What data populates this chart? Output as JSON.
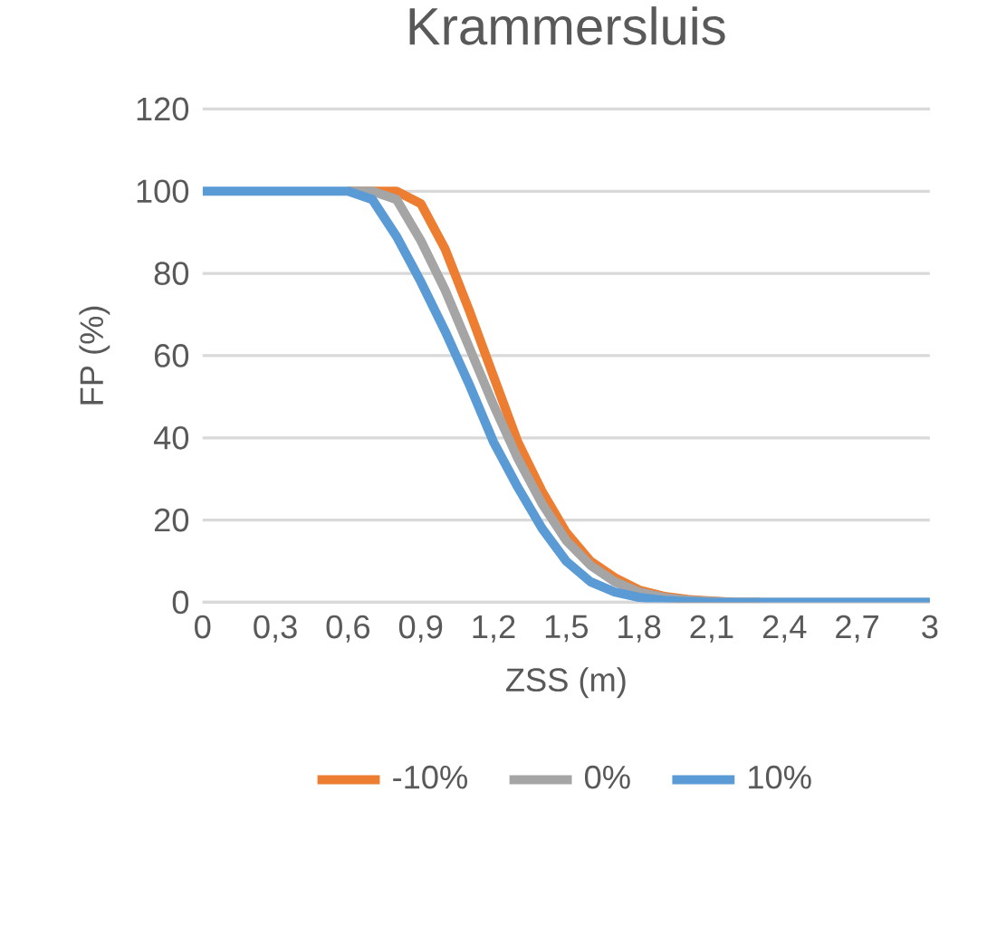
{
  "chart_data": {
    "type": "line",
    "title": "Krammersluis",
    "xlabel": "ZSS (m)",
    "ylabel": "FP (%)",
    "x": [
      0,
      0.1,
      0.2,
      0.3,
      0.4,
      0.5,
      0.6,
      0.7,
      0.8,
      0.9,
      1.0,
      1.1,
      1.2,
      1.3,
      1.4,
      1.5,
      1.6,
      1.7,
      1.8,
      1.9,
      2.0,
      2.1,
      2.2,
      2.3,
      2.4,
      2.5,
      2.6,
      2.7,
      2.8,
      2.9,
      3.0
    ],
    "series": [
      {
        "name": "-10%",
        "color": "#ed7d31",
        "values": [
          null,
          null,
          null,
          null,
          null,
          null,
          100,
          100,
          100,
          97,
          86,
          71,
          55,
          39,
          27,
          17,
          10,
          6,
          3,
          1.5,
          0.7,
          0.3,
          0,
          0,
          null,
          null,
          null,
          null,
          null,
          null,
          null
        ]
      },
      {
        "name": "0%",
        "color": "#a5a5a5",
        "values": [
          null,
          null,
          null,
          null,
          null,
          null,
          100,
          100,
          98,
          88,
          76,
          62,
          48,
          35,
          24,
          15,
          9,
          5,
          2.5,
          1.2,
          0.5,
          0.2,
          0,
          0,
          0,
          0,
          0,
          0,
          0,
          0,
          0
        ]
      },
      {
        "name": "10%",
        "color": "#5b9bd5",
        "values": [
          100,
          100,
          100,
          100,
          100,
          100,
          100,
          98,
          89,
          78,
          66,
          53,
          39,
          28,
          18,
          10,
          5,
          2.5,
          1.2,
          0.5,
          0.2,
          0,
          0,
          0,
          0,
          0,
          0,
          0,
          0,
          0,
          0
        ]
      }
    ],
    "xlim": [
      0,
      3
    ],
    "xticks": [
      0,
      {
        "value": 0.3,
        "label": "0,3"
      },
      {
        "value": 0.6,
        "label": "0,6"
      },
      {
        "value": 0.9,
        "label": "0,9"
      },
      {
        "value": 1.2,
        "label": "1,2"
      },
      {
        "value": 1.5,
        "label": "1,5"
      },
      {
        "value": 1.8,
        "label": "1,8"
      },
      {
        "value": 2.1,
        "label": "2,1"
      },
      {
        "value": 2.4,
        "label": "2,4"
      },
      {
        "value": 2.7,
        "label": "2,7"
      },
      3
    ],
    "ylim": [
      0,
      120
    ],
    "yticks": [
      0,
      20,
      40,
      60,
      80,
      100,
      120
    ],
    "grid": "y",
    "legend": "bottom",
    "marker": "none",
    "line_style": "solid"
  }
}
